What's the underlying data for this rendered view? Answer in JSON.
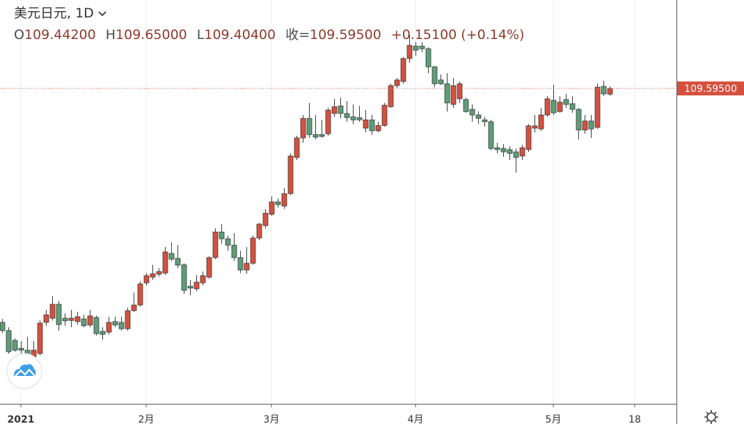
{
  "chart_data": {
    "type": "candlestick",
    "title": "美元日元, 1D",
    "legend_items": [
      {
        "key": "O",
        "value": "109.44200"
      },
      {
        "key": "H",
        "value": "109.65000"
      },
      {
        "key": "L",
        "value": "109.40400"
      },
      {
        "key": "收=",
        "value": "109.59500"
      }
    ],
    "change": "+0.15100 (+0.14%)",
    "last_price": {
      "value": 109.595,
      "label": "109.59500"
    },
    "up_color": "#d5513e",
    "down_color": "#5e9d78",
    "ylim": [
      101.215,
      111.945
    ],
    "categories": [
      null,
      null,
      null,
      "2021",
      null,
      null,
      null,
      null,
      null,
      null,
      null,
      null,
      null,
      null,
      null,
      null,
      null,
      null,
      null,
      null,
      null,
      null,
      null,
      "2月",
      null,
      null,
      null,
      null,
      null,
      null,
      null,
      null,
      null,
      null,
      null,
      null,
      null,
      null,
      null,
      null,
      null,
      null,
      null,
      "3月",
      null,
      null,
      null,
      null,
      null,
      null,
      null,
      null,
      null,
      null,
      null,
      null,
      null,
      null,
      null,
      null,
      null,
      null,
      null,
      null,
      null,
      null,
      "4月",
      null,
      null,
      null,
      null,
      null,
      null,
      null,
      null,
      null,
      null,
      null,
      null,
      null,
      null,
      null,
      null,
      null,
      null,
      null,
      null,
      null,
      "5月",
      null,
      null,
      null,
      null,
      null,
      null,
      null,
      null,
      null,
      null,
      null,
      null,
      "18"
    ],
    "open": [
      103.38,
      103.16,
      102.9,
      102.69,
      102.64,
      102.47,
      102.55,
      103.38,
      103.49,
      103.86,
      103.49,
      103.43,
      103.4,
      103.47,
      103.31,
      103.51,
      103.14,
      103.12,
      103.4,
      103.38,
      103.21,
      103.69,
      103.84,
      104.43,
      104.58,
      104.66,
      104.69,
      105.21,
      105.08,
      104.91,
      104.34,
      104.27,
      104.43,
      104.58,
      105.1,
      105.78,
      105.6,
      105.43,
      105.1,
      104.77,
      104.95,
      105.62,
      105.95,
      106.25,
      106.58,
      106.47,
      106.8,
      107.76,
      108.28,
      108.8,
      108.37,
      108.37,
      108.39,
      108.93,
      109.13,
      108.93,
      108.84,
      108.82,
      108.54,
      108.76,
      108.47,
      108.61,
      109.11,
      109.67,
      109.78,
      110.39,
      110.72,
      110.72,
      110.65,
      110.17,
      109.82,
      109.72,
      109.17,
      109.32,
      109.3,
      109.04,
      108.89,
      108.76,
      108.71,
      108.02,
      108.0,
      107.97,
      107.91,
      107.8,
      107.97,
      108.54,
      108.52,
      108.89,
      109.28,
      108.98,
      109.3,
      109.19,
      109.04,
      108.49,
      108.73,
      108.56,
      109.65,
      109.442,
      null,
      null,
      null,
      null
    ],
    "high": [
      103.47,
      103.25,
      102.95,
      102.88,
      102.99,
      102.88,
      103.43,
      103.71,
      104.08,
      103.95,
      103.62,
      103.71,
      103.66,
      103.58,
      103.71,
      103.56,
      103.25,
      103.53,
      103.53,
      103.53,
      103.77,
      104.17,
      104.47,
      104.69,
      104.91,
      104.82,
      105.38,
      105.51,
      105.43,
      104.95,
      104.51,
      104.64,
      104.73,
      105.14,
      105.88,
      105.99,
      105.69,
      105.75,
      105.28,
      105.38,
      105.69,
      106.02,
      106.39,
      106.73,
      106.67,
      106.95,
      107.87,
      108.34,
      108.89,
      109.21,
      108.89,
      108.76,
      109.08,
      109.32,
      109.35,
      109.26,
      109.17,
      109.13,
      109.02,
      108.89,
      108.71,
      109.21,
      109.72,
      109.87,
      110.43,
      111.02,
      110.83,
      110.83,
      110.69,
      110.19,
      109.97,
      110.0,
      109.87,
      109.78,
      109.35,
      109.17,
      108.98,
      108.84,
      108.76,
      108.15,
      108.12,
      108.06,
      108.0,
      108.1,
      108.65,
      108.89,
      109.08,
      109.39,
      109.69,
      109.39,
      109.45,
      109.39,
      109.08,
      108.89,
      108.89,
      109.72,
      109.8,
      109.65,
      null,
      null,
      null,
      null
    ],
    "low": [
      103.1,
      102.55,
      102.6,
      102.55,
      102.47,
      102.42,
      102.51,
      103.29,
      103.43,
      103.16,
      103.29,
      103.25,
      103.32,
      103.25,
      103.25,
      103.03,
      102.92,
      103.06,
      103.25,
      103.16,
      103.16,
      103.66,
      103.8,
      104.36,
      104.51,
      104.6,
      104.64,
      105.01,
      104.82,
      104.14,
      104.1,
      104.21,
      104.36,
      104.54,
      105.06,
      105.47,
      105.28,
      105.01,
      104.69,
      104.67,
      104.91,
      105.56,
      105.88,
      106.21,
      106.43,
      106.39,
      106.76,
      107.69,
      108.15,
      108.28,
      108.24,
      108.28,
      108.34,
      108.84,
      108.8,
      108.71,
      108.65,
      108.71,
      108.43,
      108.36,
      108.43,
      108.58,
      109.08,
      109.61,
      109.72,
      110.28,
      110.46,
      110.56,
      110.0,
      109.63,
      109.69,
      108.98,
      109.08,
      109.21,
      108.95,
      108.71,
      108.65,
      108.58,
      107.95,
      107.87,
      107.78,
      107.69,
      107.36,
      107.69,
      107.91,
      108.43,
      108.47,
      108.84,
      108.89,
      108.95,
      109.08,
      108.95,
      108.24,
      108.39,
      108.28,
      108.52,
      109.39,
      109.404,
      null,
      null,
      null,
      null
    ],
    "close": [
      103.16,
      102.6,
      102.64,
      102.64,
      102.51,
      102.64,
      103.36,
      103.58,
      103.86,
      103.32,
      103.42,
      103.49,
      103.53,
      103.29,
      103.55,
      103.08,
      103.06,
      103.38,
      103.31,
      103.21,
      103.69,
      103.84,
      104.4,
      104.62,
      104.67,
      104.73,
      105.25,
      105.06,
      104.9,
      104.23,
      104.29,
      104.45,
      104.62,
      105.1,
      105.78,
      105.6,
      105.43,
      105.1,
      104.77,
      104.95,
      105.62,
      105.99,
      106.28,
      106.58,
      106.51,
      106.8,
      107.8,
      108.28,
      108.8,
      108.37,
      108.3,
      108.32,
      109.02,
      109.11,
      108.93,
      108.82,
      108.76,
      108.76,
      108.76,
      108.47,
      108.61,
      109.15,
      109.67,
      109.82,
      110.39,
      110.74,
      110.61,
      110.65,
      110.17,
      109.72,
      109.72,
      109.21,
      109.67,
      109.72,
      108.98,
      108.89,
      108.8,
      108.71,
      108.0,
      107.97,
      107.91,
      107.87,
      107.76,
      108.02,
      108.6,
      108.6,
      108.89,
      109.32,
      108.95,
      109.23,
      109.17,
      109.04,
      108.49,
      108.73,
      108.52,
      109.63,
      109.45,
      109.595,
      null,
      null,
      null,
      null
    ]
  }
}
